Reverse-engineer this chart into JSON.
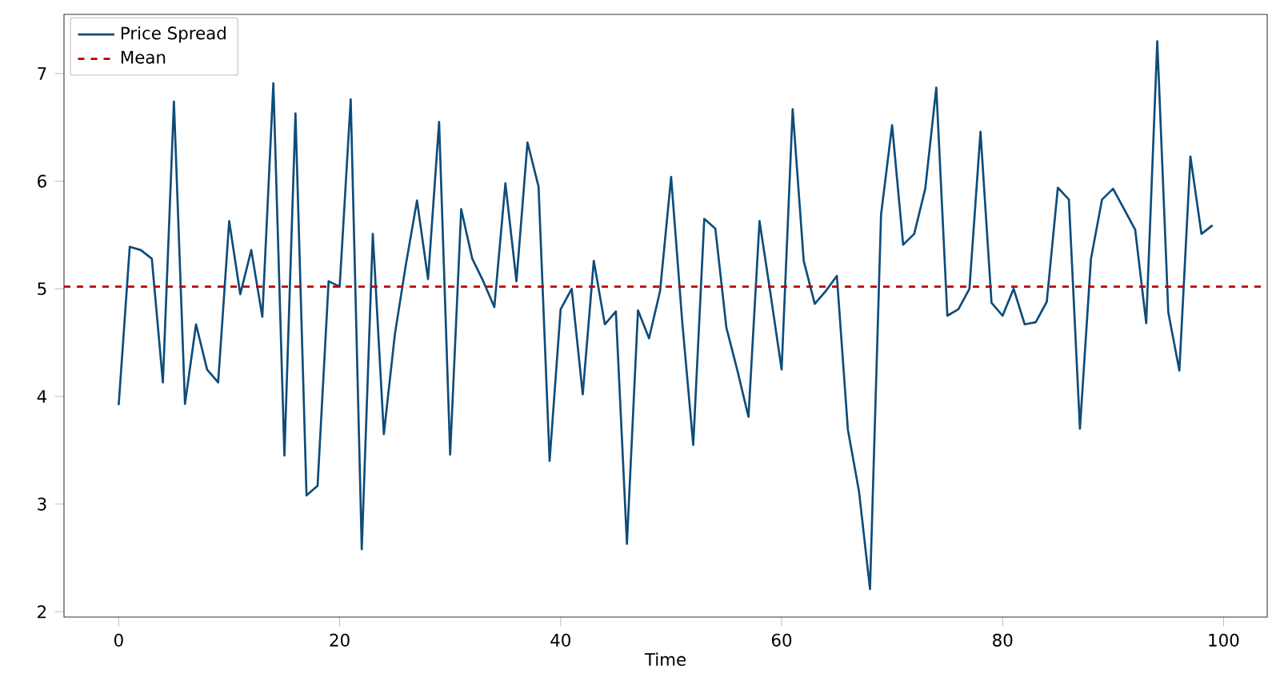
{
  "chart_data": {
    "type": "line",
    "xlabel": "Time",
    "x": [
      0,
      1,
      2,
      3,
      4,
      5,
      6,
      7,
      8,
      9,
      10,
      11,
      12,
      13,
      14,
      15,
      16,
      17,
      18,
      19,
      20,
      21,
      22,
      23,
      24,
      25,
      26,
      27,
      28,
      29,
      30,
      31,
      32,
      33,
      34,
      35,
      36,
      37,
      38,
      39,
      40,
      41,
      42,
      43,
      44,
      45,
      46,
      47,
      48,
      49,
      50,
      51,
      52,
      53,
      54,
      55,
      56,
      57,
      58,
      59,
      60,
      61,
      62,
      63,
      64,
      65,
      66,
      67,
      68,
      69,
      70,
      71,
      72,
      73,
      74,
      75,
      76,
      77,
      78,
      79,
      80,
      81,
      82,
      83,
      84,
      85,
      86,
      87,
      88,
      89,
      90,
      91,
      92,
      93,
      94,
      95,
      96,
      97,
      98,
      99
    ],
    "series": [
      {
        "name": "Price Spread",
        "color": "#0e4c7a",
        "values": [
          3.92,
          5.39,
          5.36,
          5.28,
          4.13,
          6.74,
          3.93,
          4.67,
          4.25,
          4.13,
          5.63,
          4.95,
          5.36,
          4.74,
          6.91,
          3.45,
          6.63,
          3.08,
          3.17,
          5.07,
          5.02,
          6.76,
          2.58,
          5.51,
          3.65,
          4.58,
          5.23,
          5.82,
          5.09,
          6.55,
          3.46,
          5.74,
          5.28,
          5.07,
          4.83,
          5.98,
          5.07,
          6.36,
          5.95,
          3.4,
          4.81,
          5.0,
          4.02,
          5.26,
          4.67,
          4.79,
          2.63,
          4.8,
          4.54,
          4.98,
          6.04,
          4.7,
          3.55,
          5.65,
          5.56,
          4.64,
          4.24,
          3.81,
          5.63,
          4.95,
          4.25,
          6.67,
          5.26,
          4.86,
          4.98,
          5.12,
          3.69,
          3.12,
          2.21,
          5.69,
          6.52,
          5.41,
          5.51,
          5.93,
          6.87,
          4.75,
          4.81,
          5.0,
          6.46,
          4.87,
          4.75,
          5.0,
          4.67,
          4.69,
          4.88,
          5.94,
          5.83,
          3.7,
          5.28,
          5.83,
          5.93,
          5.74,
          5.55,
          4.68,
          7.3,
          4.78,
          4.24,
          6.23,
          5.51,
          5.59
        ]
      }
    ],
    "ref_lines": [
      {
        "axis": "y",
        "value": 5.02,
        "label": "Mean",
        "color": "#c00000",
        "line_style": "dashed"
      }
    ],
    "xlim": [
      -4.95,
      103.95
    ],
    "ylim": [
      1.95,
      7.55
    ],
    "xticks": [
      0,
      20,
      40,
      60,
      80,
      100
    ],
    "yticks": [
      2,
      3,
      4,
      5,
      6,
      7
    ],
    "legend": "top left"
  }
}
